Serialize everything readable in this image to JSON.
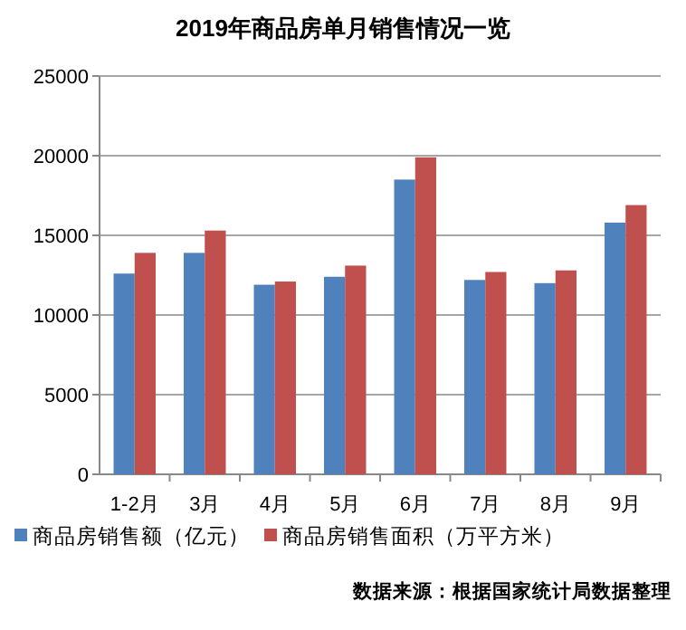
{
  "chart_data": {
    "type": "bar",
    "title": "2019年商品房单月销售情况一览",
    "categories": [
      "1-2月",
      "3月",
      "4月",
      "5月",
      "6月",
      "7月",
      "8月",
      "9月"
    ],
    "series": [
      {
        "name": "商品房销售额（亿元）",
        "color": "#4f81bd",
        "values": [
          12600,
          13900,
          11900,
          12400,
          18500,
          12200,
          12000,
          15800
        ]
      },
      {
        "name": "商品房销售面积（万平方米）",
        "color": "#c0504d",
        "values": [
          13900,
          15300,
          12100,
          13100,
          19900,
          12700,
          12800,
          16900
        ]
      }
    ],
    "ylim": [
      0,
      25000
    ],
    "yticks": [
      0,
      5000,
      10000,
      15000,
      20000,
      25000
    ],
    "grid": "y",
    "legend": "bottom",
    "annotations": [
      "数据来源：根据国家统计局数据整理"
    ]
  }
}
